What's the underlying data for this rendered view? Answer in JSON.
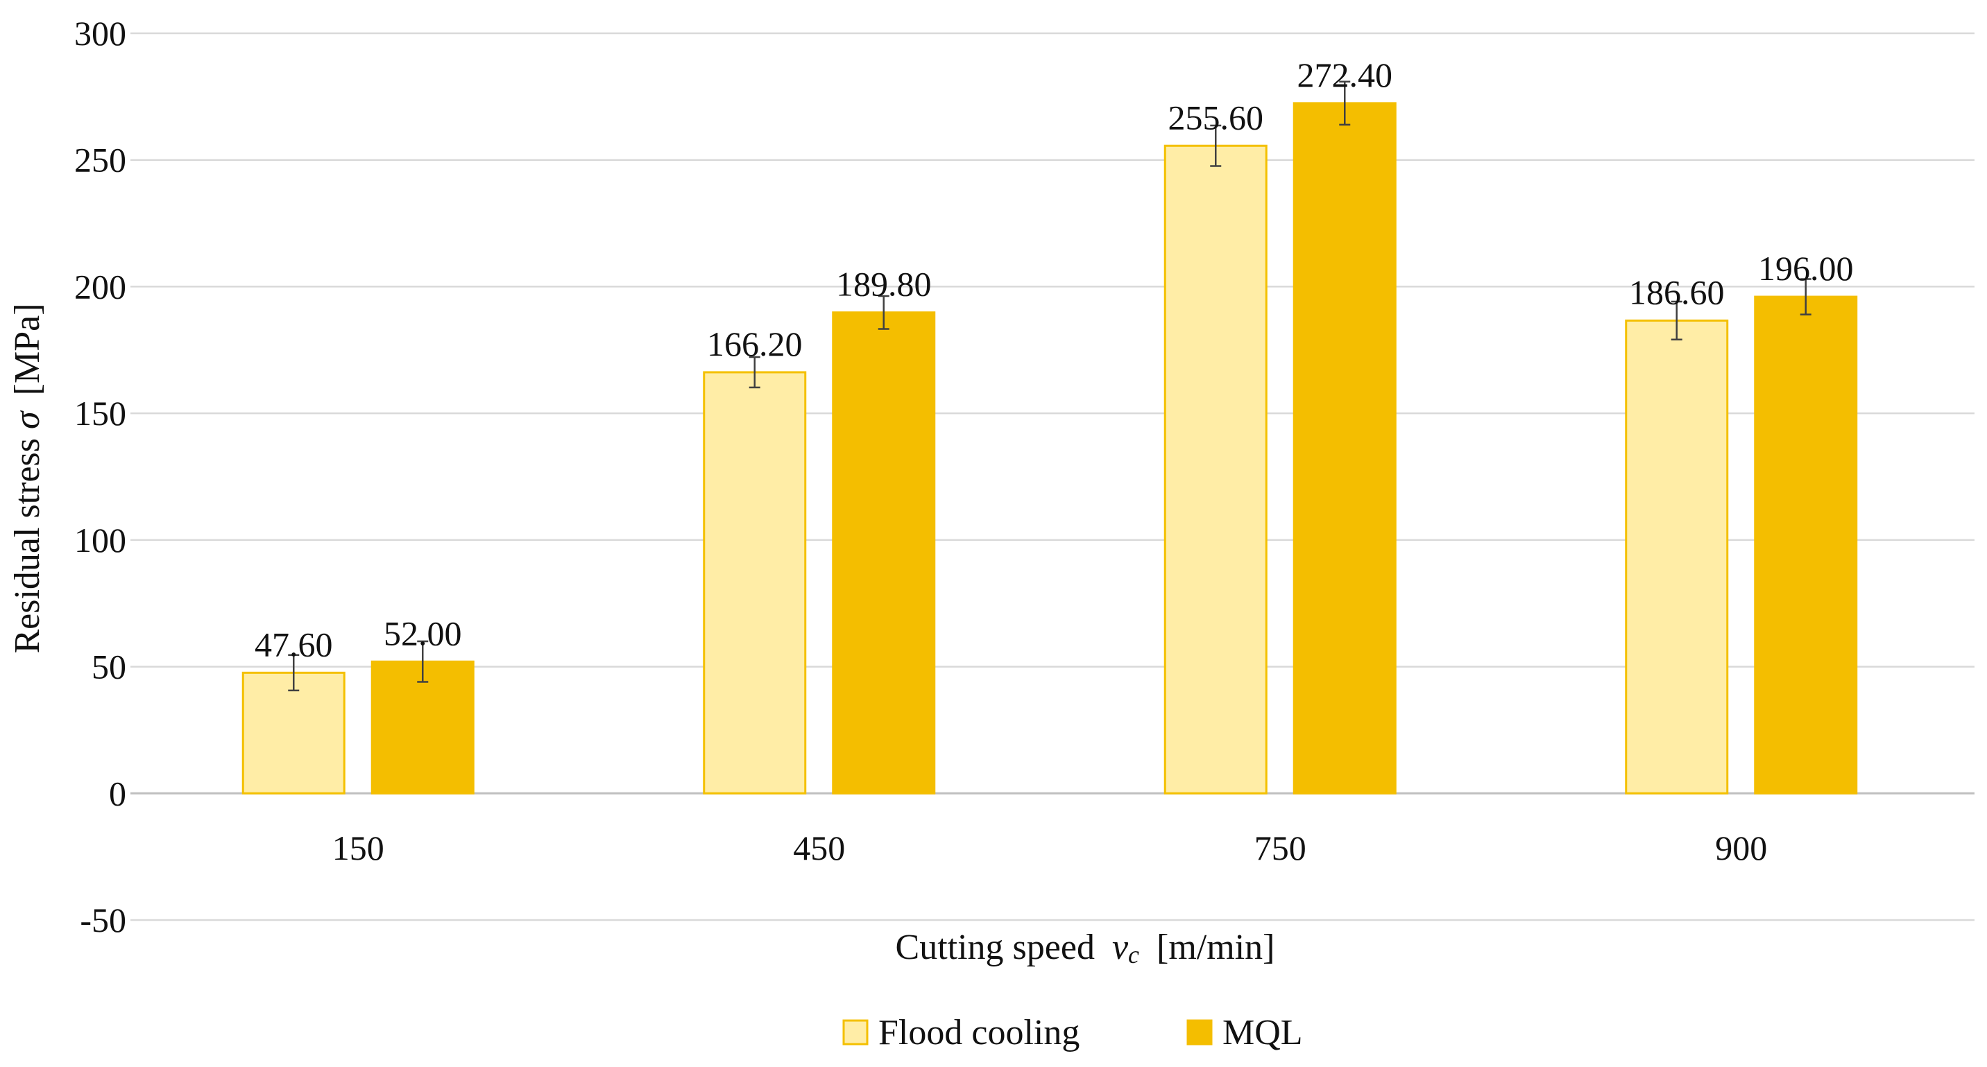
{
  "chart_data": {
    "type": "bar",
    "title": "",
    "categories": [
      "150",
      "450",
      "750",
      "900"
    ],
    "series": [
      {
        "name": "Flood cooling",
        "fill": "#FFEDA6",
        "stroke": "#F4C000",
        "values": [
          47.6,
          166.2,
          255.6,
          186.6
        ],
        "value_labels": [
          "47.60",
          "166.20",
          "255.60",
          "186.60"
        ],
        "error": [
          7,
          6,
          8,
          7.5
        ]
      },
      {
        "name": "MQL",
        "fill": "#F4BE00",
        "stroke": "#F4BE00",
        "values": [
          52.0,
          189.8,
          272.4,
          196.0
        ],
        "value_labels": [
          "52.00",
          "189.80",
          "272.40",
          "196.00"
        ],
        "error": [
          8,
          6.5,
          8.5,
          7
        ]
      }
    ],
    "ylim": [
      -50,
      300
    ],
    "yticks": [
      300,
      250,
      200,
      150,
      100,
      50,
      0,
      -50
    ],
    "ylabel_text": "Residual stress",
    "ylabel_symbol": "σ",
    "ylabel_unit": "[MPa]",
    "xlabel_text": "Cutting speed",
    "xlabel_symbol": "v",
    "xlabel_subscript": "c",
    "xlabel_unit": "[m/min]",
    "grid": true,
    "legend_position": "bottom-center"
  }
}
